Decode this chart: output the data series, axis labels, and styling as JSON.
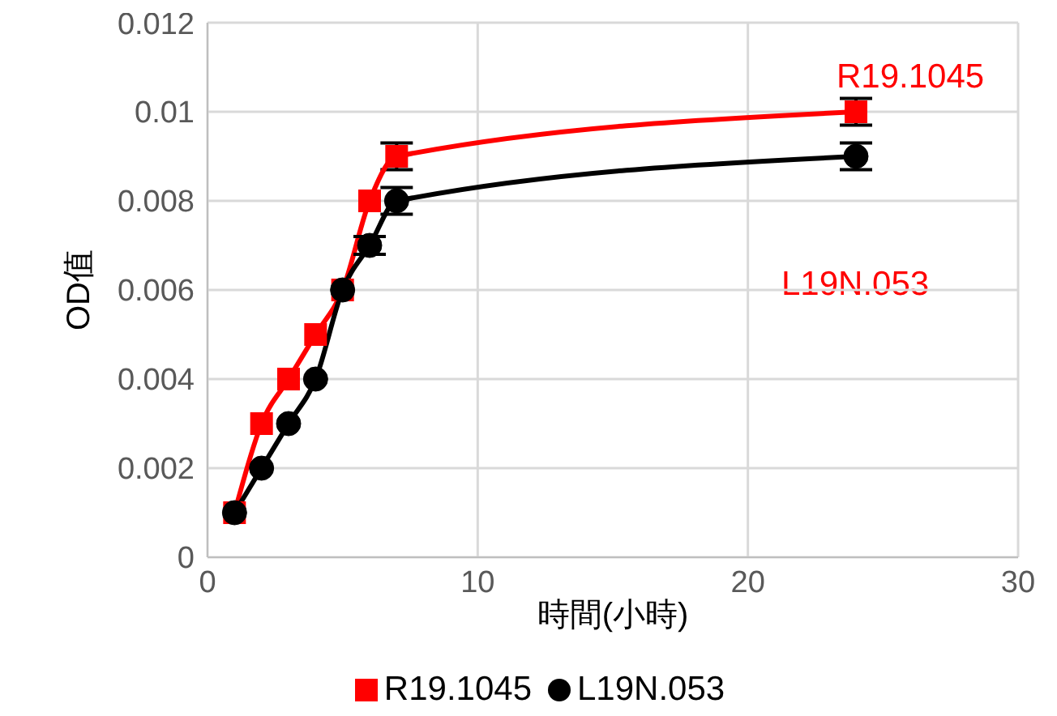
{
  "chart_data": {
    "type": "line",
    "xlabel": "時間(小時)",
    "ylabel": "OD值",
    "x": [
      1,
      2,
      3,
      4,
      5,
      6,
      7,
      24
    ],
    "series": [
      {
        "name": "R19.1045",
        "color": "#ff0000",
        "marker": "square",
        "values": [
          0.001,
          0.003,
          0.004,
          0.005,
          0.006,
          0.008,
          0.009,
          0.01
        ],
        "errors": [
          null,
          null,
          null,
          null,
          null,
          null,
          0.0003,
          0.0003
        ]
      },
      {
        "name": "L19N.053",
        "color": "#000000",
        "marker": "circle",
        "values": [
          0.001,
          0.002,
          0.003,
          0.004,
          0.006,
          0.007,
          0.008,
          0.009
        ],
        "errors": [
          null,
          null,
          null,
          null,
          null,
          0.0002,
          0.0003,
          0.0003
        ]
      }
    ],
    "xlim": [
      0,
      30
    ],
    "xticks": [
      0,
      10,
      20,
      30
    ],
    "ylim": [
      0,
      0.012
    ],
    "yticks": [
      0,
      0.002,
      0.004,
      0.006,
      0.008,
      0.01,
      0.012
    ],
    "grid": true,
    "legend": "bottom",
    "line_style": "solid",
    "annotations": [
      "R19.1045",
      "L19N.053"
    ]
  }
}
